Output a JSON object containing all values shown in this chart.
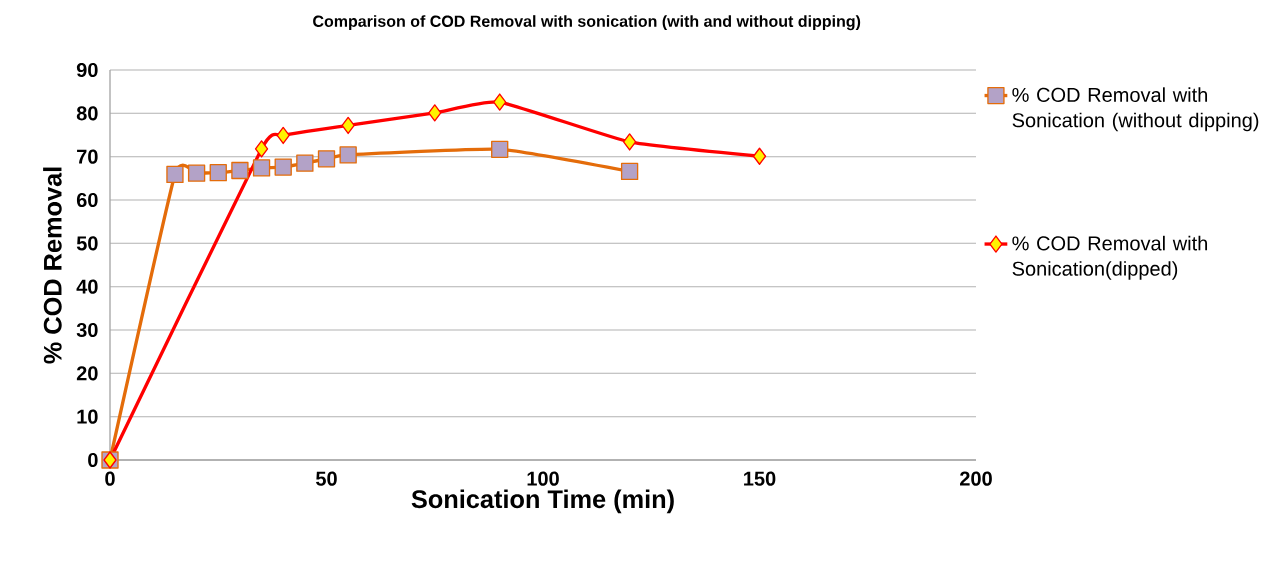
{
  "chart_data": {
    "type": "line",
    "title": "Comparison of COD Removal with sonication (with and without dipping)",
    "xlabel": "Sonication Time (min)",
    "ylabel": "% COD Removal",
    "series": [
      {
        "name": "% COD Removal with Sonication (without dipping)",
        "color": "#e46c0a",
        "marker": "square",
        "x": [
          0,
          15,
          20,
          25,
          30,
          35,
          40,
          45,
          50,
          55,
          90,
          120
        ],
        "values": [
          0,
          65.9,
          66.2,
          66.3,
          66.8,
          67.4,
          67.6,
          68.5,
          69.5,
          70.4,
          71.7,
          66.6
        ]
      },
      {
        "name": "% COD Removal with Sonication(dipped)",
        "color": "#ff0000",
        "marker": "diamond",
        "x": [
          0,
          35,
          40,
          55,
          75,
          90,
          120,
          150
        ],
        "values": [
          0,
          71.8,
          74.9,
          77.2,
          80.1,
          82.6,
          73.4,
          70.1
        ]
      }
    ],
    "xlim": [
      0,
      200
    ],
    "ylim": [
      0,
      90
    ],
    "xticks": [
      0,
      50,
      100,
      150,
      200
    ],
    "yticks": [
      0,
      10,
      20,
      30,
      40,
      50,
      60,
      70,
      80,
      90
    ],
    "grid": "y",
    "legend": "right",
    "line_style": "solid"
  }
}
